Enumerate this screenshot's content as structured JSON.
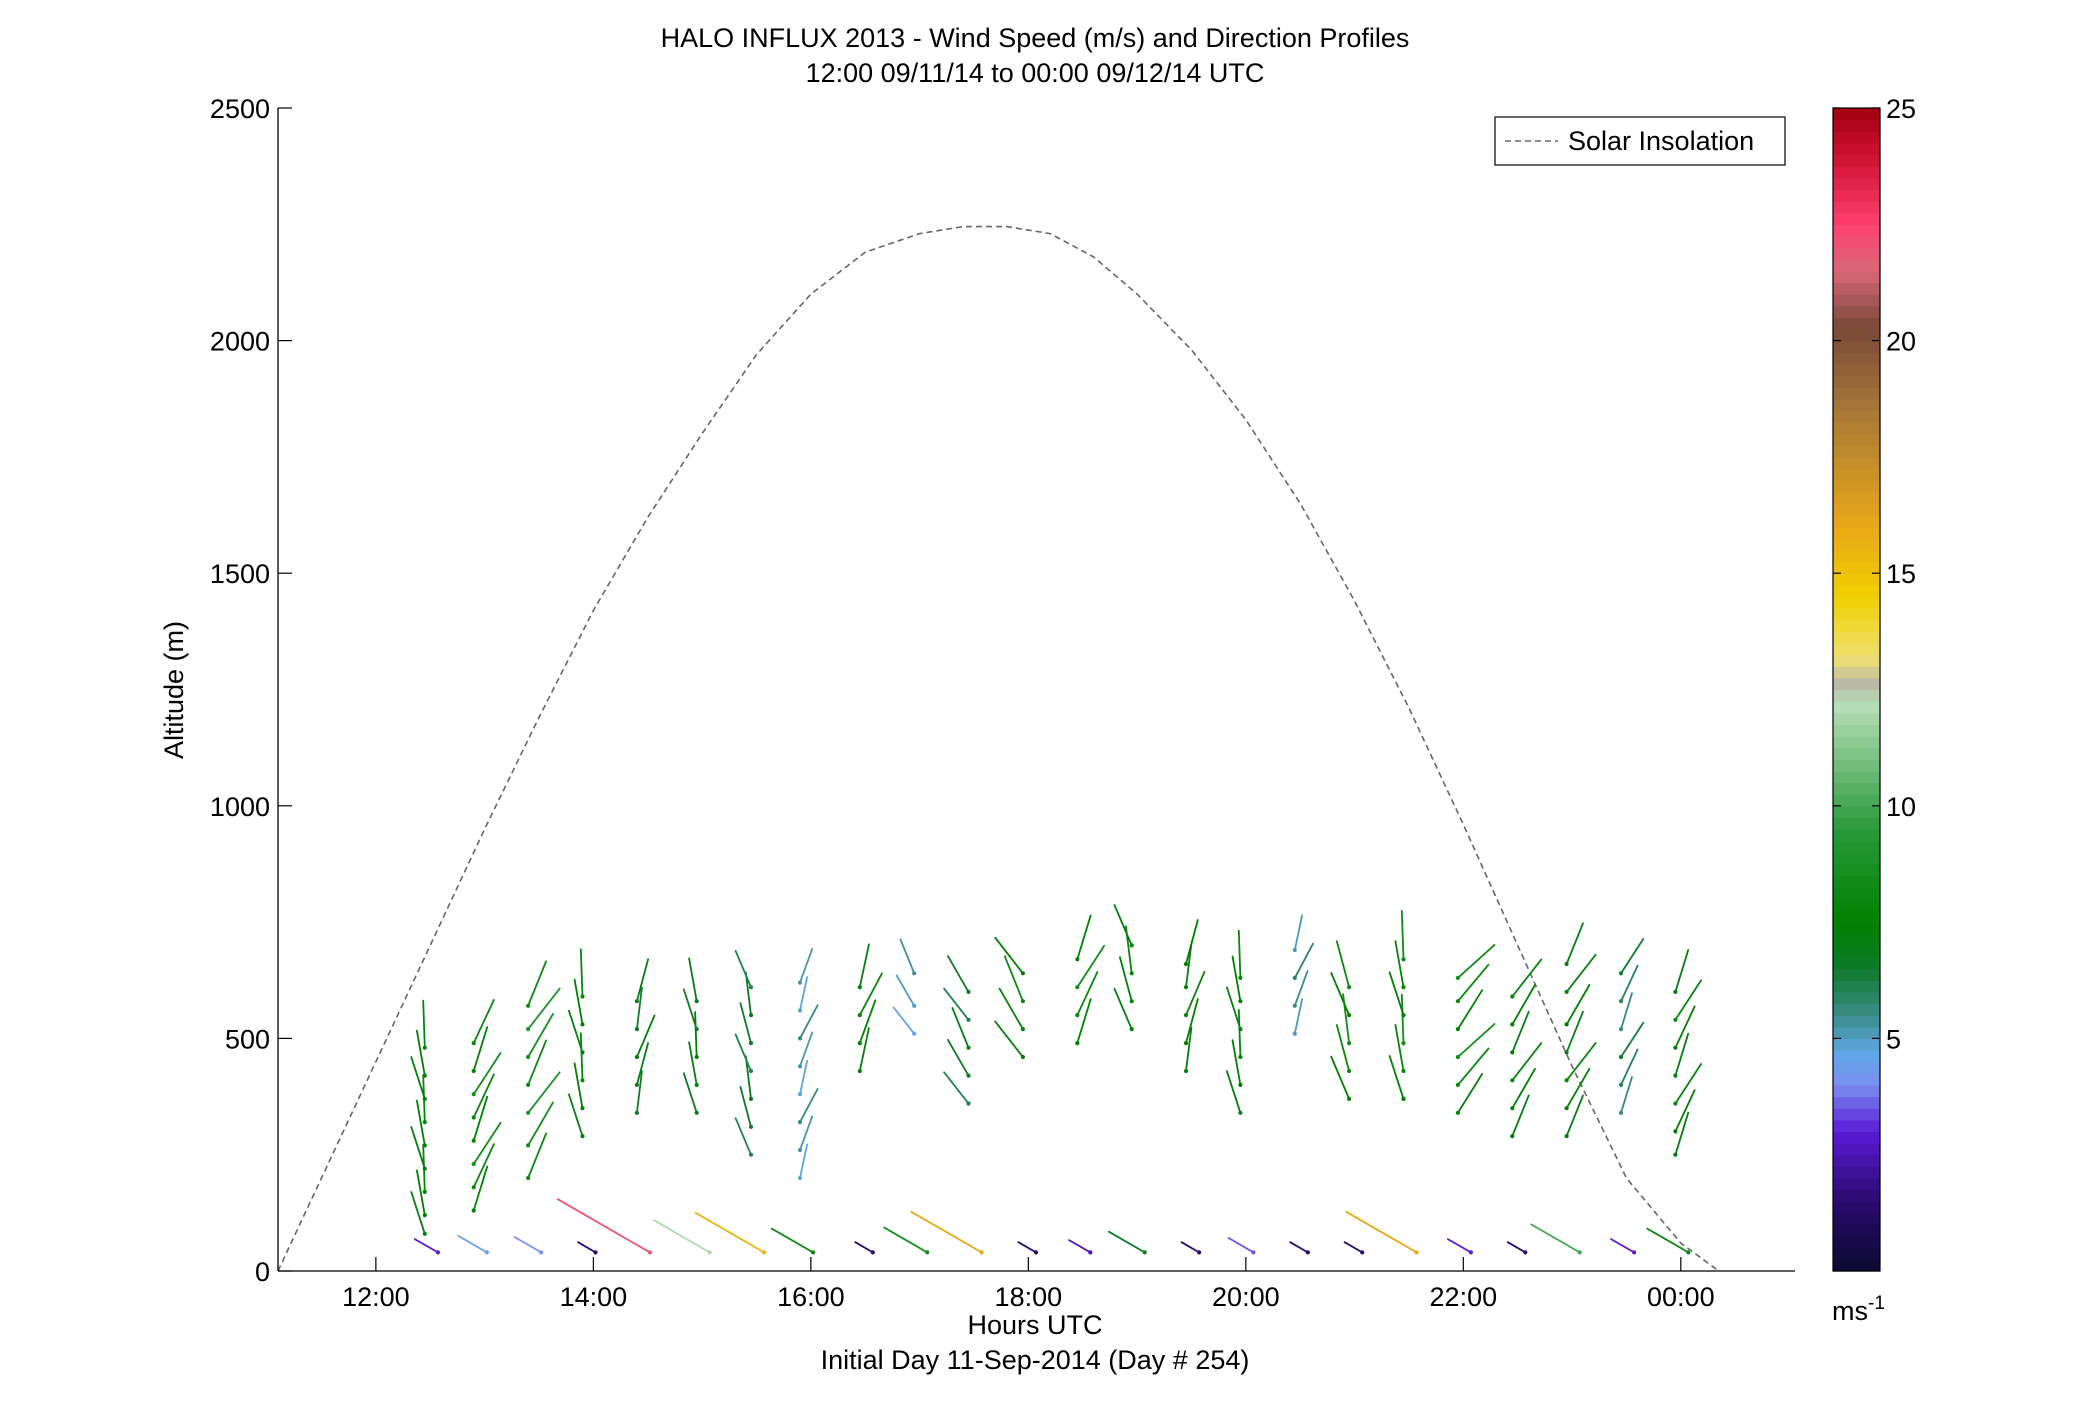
{
  "chart_data": {
    "type": "quiver",
    "title": "HALO INFLUX 2013 - Wind Speed (m/s) and Direction Profiles",
    "subtitle": "12:00 09/11/14 to 00:00 09/12/14  UTC",
    "xlabel": "Hours UTC",
    "xlabel2": "Initial Day 11-Sep-2014 (Day # 254)",
    "ylabel": "Altitude (m)",
    "xlim": [
      11.1,
      25.05
    ],
    "ylim": [
      0,
      2500
    ],
    "xticks": [
      {
        "value": 12,
        "label": "12:00"
      },
      {
        "value": 14,
        "label": "14:00"
      },
      {
        "value": 16,
        "label": "16:00"
      },
      {
        "value": 18,
        "label": "18:00"
      },
      {
        "value": 20,
        "label": "20:00"
      },
      {
        "value": 22,
        "label": "22:00"
      },
      {
        "value": 24,
        "label": "00:00"
      }
    ],
    "yticks": [
      {
        "value": 0,
        "label": "0"
      },
      {
        "value": 500,
        "label": "500"
      },
      {
        "value": 1000,
        "label": "1000"
      },
      {
        "value": 1500,
        "label": "1500"
      },
      {
        "value": 2000,
        "label": "2000"
      },
      {
        "value": 2500,
        "label": "2500"
      }
    ],
    "legend": {
      "placement": "top-right",
      "entries": [
        {
          "label": "Solar Insolation",
          "style": "dashed",
          "color": "#666666"
        }
      ]
    },
    "colorbar": {
      "range": [
        0,
        25
      ],
      "unit_base": "ms",
      "unit_sup": "-1",
      "ticks": [
        {
          "value": 5,
          "label": "5"
        },
        {
          "value": 10,
          "label": "10"
        },
        {
          "value": 15,
          "label": "15"
        },
        {
          "value": 20,
          "label": "20"
        },
        {
          "value": 25,
          "label": "25"
        }
      ],
      "stops": [
        {
          "v": 0,
          "color": "#0a0a30"
        },
        {
          "v": 1.5,
          "color": "#2a0a6e"
        },
        {
          "v": 3,
          "color": "#5a1ad6"
        },
        {
          "v": 4,
          "color": "#7a8ff0"
        },
        {
          "v": 4.7,
          "color": "#5fa8e8"
        },
        {
          "v": 5.5,
          "color": "#3a8c88"
        },
        {
          "v": 6.5,
          "color": "#0e7a2a"
        },
        {
          "v": 7.5,
          "color": "#008000"
        },
        {
          "v": 9.5,
          "color": "#2a9a3a"
        },
        {
          "v": 11,
          "color": "#78c080"
        },
        {
          "v": 12.2,
          "color": "#b8e0b8"
        },
        {
          "v": 12.6,
          "color": "#b8b8a8"
        },
        {
          "v": 13.2,
          "color": "#f0e070"
        },
        {
          "v": 14.5,
          "color": "#f0d000"
        },
        {
          "v": 16,
          "color": "#e8a818"
        },
        {
          "v": 18.5,
          "color": "#a87838"
        },
        {
          "v": 20.3,
          "color": "#7a4838"
        },
        {
          "v": 21.5,
          "color": "#d86878"
        },
        {
          "v": 22.5,
          "color": "#ff4070"
        },
        {
          "v": 24,
          "color": "#cc1030"
        },
        {
          "v": 25,
          "color": "#a00010"
        }
      ]
    },
    "solar_insolation": {
      "x": [
        11.1,
        11.5,
        12.0,
        12.5,
        13.0,
        13.5,
        14.0,
        14.5,
        15.0,
        15.5,
        16.0,
        16.5,
        17.0,
        17.4,
        17.8,
        18.2,
        18.6,
        19.0,
        19.5,
        20.0,
        20.5,
        21.0,
        21.5,
        22.0,
        22.5,
        23.0,
        23.5,
        24.0,
        24.35
      ],
      "y": [
        0,
        200,
        450,
        700,
        950,
        1190,
        1420,
        1620,
        1800,
        1970,
        2100,
        2190,
        2230,
        2245,
        2245,
        2230,
        2180,
        2100,
        1980,
        1830,
        1650,
        1440,
        1210,
        960,
        700,
        440,
        200,
        60,
        0
      ]
    },
    "profiles": [
      {
        "t": 12.45,
        "heights": [
          80,
          120,
          170,
          220,
          270,
          320,
          370,
          420,
          480
        ],
        "speed": 7.5,
        "dir": 350,
        "low_speed": 3.0
      },
      {
        "t": 12.9,
        "heights": [
          130,
          180,
          230,
          280,
          330,
          380,
          430,
          490
        ],
        "speed": 8.0,
        "dir": 25,
        "low_speed": 4.5
      },
      {
        "t": 13.4,
        "heights": [
          200,
          270,
          340,
          400,
          460,
          520,
          570
        ],
        "speed": 8.5,
        "dir": 30,
        "low_speed": 4.0
      },
      {
        "t": 13.9,
        "heights": [
          290,
          350,
          410,
          470,
          530,
          590
        ],
        "speed": 7.5,
        "dir": 350,
        "low_speed": 1.5
      },
      {
        "t": 14.4,
        "heights": [
          340,
          400,
          460,
          520,
          580
        ],
        "speed": 7.0,
        "dir": 15,
        "low_speed": 22.0
      },
      {
        "t": 14.95,
        "heights": [
          340,
          400,
          460,
          520,
          580
        ],
        "speed": 7.0,
        "dir": 350,
        "low_speed": 12.0
      },
      {
        "t": 15.45,
        "heights": [
          250,
          310,
          370,
          430,
          490,
          550,
          610
        ],
        "speed": 6.5,
        "dir": 345,
        "low_speed": 15.5
      },
      {
        "t": 15.9,
        "heights": [
          200,
          260,
          320,
          380,
          440,
          500,
          560,
          620
        ],
        "speed": 5.2,
        "dir": 20,
        "low_speed": 8.0
      },
      {
        "t": 16.45,
        "heights": [
          430,
          490,
          550,
          610
        ],
        "speed": 7.5,
        "dir": 20,
        "low_speed": 1.5
      },
      {
        "t": 16.95,
        "heights": [
          510,
          570,
          640
        ],
        "speed": 5.0,
        "dir": 330,
        "low_speed": 8.5
      },
      {
        "t": 17.45,
        "heights": [
          360,
          420,
          480,
          540,
          600
        ],
        "speed": 6.5,
        "dir": 330,
        "low_speed": 16.0
      },
      {
        "t": 17.95,
        "heights": [
          460,
          520,
          580,
          640
        ],
        "speed": 7.8,
        "dir": 330,
        "low_speed": 1.5
      },
      {
        "t": 18.45,
        "heights": [
          490,
          550,
          610,
          670
        ],
        "speed": 8.0,
        "dir": 25,
        "low_speed": 2.5
      },
      {
        "t": 18.95,
        "heights": [
          520,
          580,
          640,
          700
        ],
        "speed": 7.5,
        "dir": 345,
        "low_speed": 6.5
      },
      {
        "t": 19.45,
        "heights": [
          430,
          490,
          550,
          610,
          660
        ],
        "speed": 7.5,
        "dir": 15,
        "low_speed": 1.5
      },
      {
        "t": 19.95,
        "heights": [
          340,
          400,
          460,
          520,
          580,
          630
        ],
        "speed": 7.5,
        "dir": 350,
        "low_speed": 3.5
      },
      {
        "t": 20.45,
        "heights": [
          510,
          570,
          630,
          690
        ],
        "speed": 5.5,
        "dir": 20,
        "low_speed": 1.5
      },
      {
        "t": 20.95,
        "heights": [
          370,
          430,
          490,
          550,
          610
        ],
        "speed": 8.0,
        "dir": 345,
        "low_speed": 1.5
      },
      {
        "t": 21.45,
        "heights": [
          370,
          430,
          490,
          550,
          610,
          670
        ],
        "speed": 7.8,
        "dir": 350,
        "low_speed": 16.0
      },
      {
        "t": 21.95,
        "heights": [
          340,
          400,
          460,
          520,
          580,
          630
        ],
        "speed": 8.0,
        "dir": 40,
        "low_speed": 3.0
      },
      {
        "t": 22.45,
        "heights": [
          290,
          350,
          410,
          470,
          530,
          590
        ],
        "speed": 7.5,
        "dir": 30,
        "low_speed": 1.5
      },
      {
        "t": 22.95,
        "heights": [
          290,
          350,
          410,
          470,
          530,
          600,
          660
        ],
        "speed": 7.5,
        "dir": 30,
        "low_speed": 10.0
      },
      {
        "t": 23.45,
        "heights": [
          340,
          400,
          460,
          520,
          580,
          640
        ],
        "speed": 6.0,
        "dir": 25,
        "low_speed": 3.0
      },
      {
        "t": 23.95,
        "heights": [
          250,
          300,
          360,
          420,
          480,
          540,
          600
        ],
        "speed": 7.5,
        "dir": 25,
        "low_speed": 8.0
      }
    ]
  }
}
